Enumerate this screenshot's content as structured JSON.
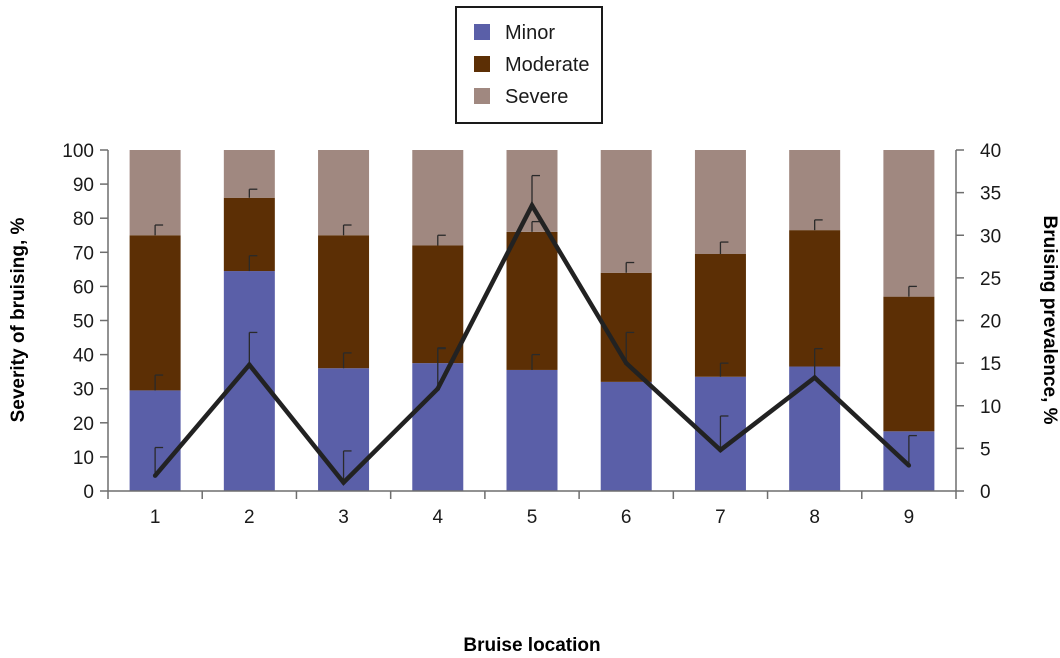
{
  "chart_data": {
    "type": "bar",
    "stacked": true,
    "categories": [
      "1",
      "2",
      "3",
      "4",
      "5",
      "6",
      "7",
      "8",
      "9"
    ],
    "series": [
      {
        "name": "Minor",
        "color": "#5a5fa8",
        "values": [
          29.5,
          64.5,
          36,
          37.5,
          35.5,
          32,
          33.5,
          36.5,
          17.5
        ],
        "error": [
          4.5,
          4.5,
          4.5,
          4.5,
          4.5,
          0,
          4,
          0,
          0
        ]
      },
      {
        "name": "Moderate",
        "color": "#5c2f05",
        "values": [
          45.5,
          21.5,
          39,
          34.5,
          40.5,
          32,
          36,
          40,
          39.5
        ],
        "error": [
          3,
          2.5,
          3,
          3,
          3,
          3,
          3.5,
          3,
          3
        ]
      },
      {
        "name": "Severe",
        "color": "#a08880",
        "values": [
          25,
          14,
          25,
          28,
          24,
          36,
          30.5,
          23.5,
          43
        ]
      }
    ],
    "line": {
      "axis": "secondary",
      "color": "#222222",
      "values": [
        1.8,
        14.8,
        1,
        12,
        33.5,
        15,
        4.8,
        13.3,
        3
      ],
      "error": [
        3.3,
        3.8,
        3.7,
        4.7,
        3.5,
        3.6,
        4,
        3.4,
        3.5
      ]
    },
    "xlabel": "Bruise location",
    "ylabel": "Severity of bruising, %",
    "y2label": "Bruising prevalence, %",
    "ylim": [
      0,
      100
    ],
    "y2lim": [
      0,
      40
    ],
    "yticks": [
      "0",
      "10",
      "20",
      "30",
      "40",
      "50",
      "60",
      "70",
      "80",
      "90",
      "100"
    ],
    "y2ticks": [
      "0",
      "5",
      "10",
      "15",
      "20",
      "25",
      "30",
      "35",
      "40"
    ],
    "grid": false,
    "legend_position": "top-center"
  }
}
